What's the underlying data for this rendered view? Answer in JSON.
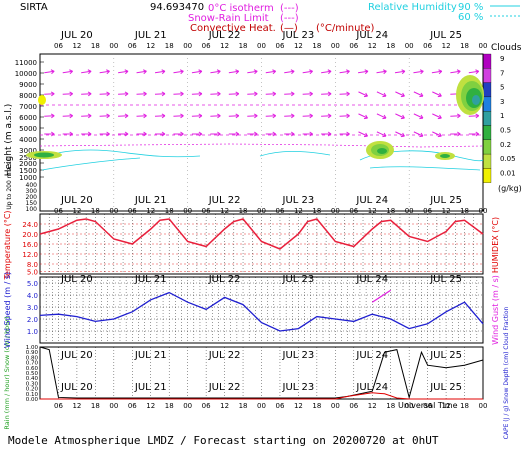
{
  "header": {
    "site": "SIRTA",
    "lon": "94.693470",
    "legend_iso": "0°C isotherm",
    "legend_iso_sym": "(---)",
    "legend_snow": "Snow-Rain Limit",
    "legend_snow_sym": "(---)",
    "legend_conv": "Convective Heat.",
    "legend_conv_sym": "(—)",
    "legend_conv_unit": "(°C/minute)",
    "rh_label": "Relative Humidity",
    "rh_90": "90 %",
    "rh_60": "60 %"
  },
  "footer": "Modele Atmospherique LMDZ / Forecast starting on 20200720 at 0hUT",
  "colors": {
    "magenta": "#e020e0",
    "cyan": "#20d0e0",
    "red": "#e00000",
    "blue": "#2020d0",
    "temp": "#e8203c",
    "grid": "#000000"
  },
  "days": [
    "JUL 20",
    "JUL 21",
    "JUL 22",
    "JUL 23",
    "JUL 24",
    "JUL 25"
  ],
  "hours": [
    "06",
    "12",
    "18",
    "00"
  ],
  "clouds": {
    "title": "Clouds",
    "unit": "(g/kg)",
    "levels": [
      "9",
      "7",
      "5",
      "3",
      "1",
      "0.5",
      "0.2",
      "0.05",
      "0.01"
    ],
    "colors": [
      "#b000c0",
      "#d040e0",
      "#2040c0",
      "#2080e0",
      "#30a0a0",
      "#30b040",
      "#80d040",
      "#c0e040",
      "#f0f000"
    ]
  },
  "panels": {
    "height": {
      "ylabel": "Height (m a.s.l.)",
      "ylabel2": "Up to 200 m a.s.l.",
      "ticks_upper": [
        "11000",
        "10000",
        "9000",
        "8000",
        "7000",
        "6000",
        "5000",
        "4000",
        "3000",
        "2500",
        "2000",
        "1500",
        "1000"
      ],
      "ticks_lower": [
        "400",
        "300",
        "200",
        "150",
        "100"
      ]
    },
    "temperature": {
      "ylabel": "Temperature (°C)",
      "ylabel_right": "HUMIDEX (°C)",
      "ticks": [
        "24.0",
        "20.0",
        "16.0",
        "12.0",
        "8.0",
        "5.0"
      ]
    },
    "wind": {
      "ylabel": "Wind Speed (m / s)",
      "ylabel_right": "Wind Gust (m / s)",
      "ticks": [
        "5.0",
        "4.0",
        "3.0",
        "2.0",
        "1.0"
      ]
    },
    "precip": {
      "ylabel": "Rain (mm / hour) Snow (cm / hour)",
      "ylabel_right": "CAPE (J / g) Snow Depth (cm) Cloud Fraction",
      "ticks": [
        "1.00",
        "0.90",
        "0.80",
        "0.70",
        "0.60",
        "0.50",
        "0.40",
        "0.30",
        "0.20",
        "0.10",
        "0.00"
      ],
      "xlabel": "Universal Time"
    }
  },
  "chart_data": [
    {
      "type": "line",
      "title": "Temperature (°C)",
      "ylim": [
        4,
        28
      ],
      "x_hours": [
        0,
        6,
        12,
        15,
        18,
        24,
        30,
        36,
        39,
        42,
        48,
        54,
        60,
        63,
        66,
        72,
        78,
        84,
        87,
        90,
        96,
        102,
        108,
        111,
        114,
        120,
        126,
        132,
        135,
        138,
        144
      ],
      "series": [
        {
          "name": "Temperature",
          "values": [
            20,
            22,
            25.5,
            26,
            25,
            18,
            16,
            22,
            25.5,
            26,
            17,
            15,
            22,
            25,
            26,
            17,
            14,
            20,
            25,
            26,
            17,
            15,
            22,
            25,
            25.5,
            19,
            17,
            21,
            25,
            25.5,
            20
          ]
        }
      ]
    },
    {
      "type": "line",
      "title": "Wind Speed (m / s)",
      "ylim": [
        0,
        5.5
      ],
      "x_hours": [
        0,
        6,
        12,
        18,
        24,
        30,
        36,
        42,
        48,
        54,
        60,
        66,
        72,
        78,
        84,
        90,
        96,
        102,
        108,
        114,
        120,
        126,
        132,
        138,
        144
      ],
      "series": [
        {
          "name": "Wind Speed",
          "values": [
            2.3,
            2.4,
            2.2,
            1.8,
            2.0,
            2.6,
            3.6,
            4.2,
            3.4,
            2.8,
            3.8,
            3.2,
            1.7,
            1.0,
            1.2,
            2.2,
            2.0,
            1.8,
            2.4,
            2.0,
            1.2,
            1.6,
            2.6,
            3.4,
            1.6
          ]
        },
        {
          "name": "Wind Gust",
          "values": [
            null,
            null,
            null,
            null,
            null,
            null,
            null,
            null,
            null,
            null,
            null,
            null,
            null,
            null,
            null,
            null,
            null,
            null,
            3.4,
            4.4,
            null,
            null,
            null,
            null,
            null
          ]
        }
      ]
    },
    {
      "type": "line",
      "title": "Cloud Fraction / CAPE",
      "ylim": [
        0,
        1.0
      ],
      "x_hours": [
        0,
        3,
        6,
        12,
        24,
        36,
        48,
        60,
        72,
        84,
        96,
        100,
        108,
        112,
        116,
        120,
        124,
        126,
        132,
        138,
        144
      ],
      "series": [
        {
          "name": "Cloud Fraction",
          "values": [
            1.0,
            0.95,
            0.03,
            0.02,
            0.02,
            0.02,
            0.02,
            0.02,
            0.02,
            0.02,
            0.02,
            0.05,
            0.15,
            0.9,
            0.95,
            0.03,
            0.9,
            0.65,
            0.6,
            0.65,
            0.75
          ]
        },
        {
          "name": "CAPE",
          "values": [
            0,
            0,
            0,
            0,
            0,
            0,
            0,
            0,
            0,
            0,
            0,
            0.05,
            0.12,
            0.1,
            0.02,
            0,
            0,
            0,
            0,
            0,
            0
          ]
        }
      ]
    }
  ]
}
